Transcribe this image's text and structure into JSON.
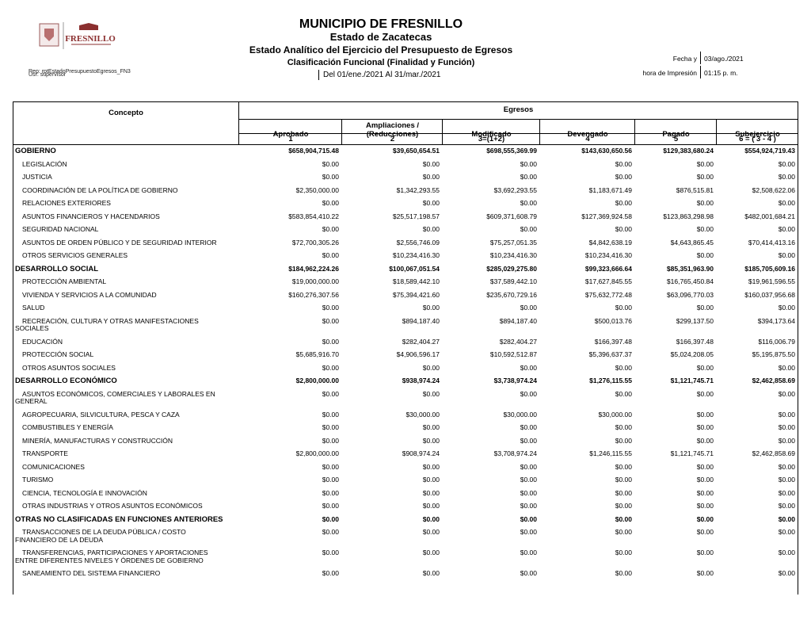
{
  "header": {
    "logo_text": "FRESNILLO",
    "title": "MUNICIPIO DE FRESNILLO",
    "subtitle": "Estado de Zacatecas",
    "report": "Estado Analítico del Ejercicio del Presupuesto de Egresos",
    "classification": "Clasificación Funcional (Finalidad y Función)",
    "period": "Del 01/ene./2021 Al 31/mar./2021",
    "rep": "Rep: rptEstadoPresupuestoEgresos_FN3",
    "user": "Usr: supervisor",
    "date_label": "Fecha y",
    "date": "03/ago./2021",
    "time_label": "hora de Impresión",
    "time": "01:15 p. m."
  },
  "table": {
    "concept_header": "Concepto",
    "group_header": "Egresos",
    "columns": [
      {
        "lines": [
          "Aprobado"
        ],
        "number": "1"
      },
      {
        "lines": [
          "Ampliaciones /",
          "(Reducciones)"
        ],
        "number": "2"
      },
      {
        "lines": [
          "Modificado"
        ],
        "number": "3=(1+2)"
      },
      {
        "lines": [
          "Devengado"
        ],
        "number": "4"
      },
      {
        "lines": [
          "Pagado"
        ],
        "number": "5"
      },
      {
        "lines": [
          "Subejercicio"
        ],
        "number": "6 = ( 3 - 4 )"
      }
    ],
    "sections": [
      {
        "name": "GOBIERNO",
        "totals": [
          "$658,904,715.48",
          "$39,650,654.51",
          "$698,555,369.99",
          "$143,630,650.56",
          "$129,383,680.24",
          "$554,924,719.43"
        ],
        "items": [
          {
            "concept": "LEGISLACIÓN",
            "values": [
              "$0.00",
              "$0.00",
              "$0.00",
              "$0.00",
              "$0.00",
              "$0.00"
            ]
          },
          {
            "concept": "JUSTICIA",
            "values": [
              "$0.00",
              "$0.00",
              "$0.00",
              "$0.00",
              "$0.00",
              "$0.00"
            ]
          },
          {
            "concept": "COORDINACIÓN DE LA POLÍTICA DE GOBIERNO",
            "values": [
              "$2,350,000.00",
              "$1,342,293.55",
              "$3,692,293.55",
              "$1,183,671.49",
              "$876,515.81",
              "$2,508,622.06"
            ]
          },
          {
            "concept": "RELACIONES EXTERIORES",
            "values": [
              "$0.00",
              "$0.00",
              "$0.00",
              "$0.00",
              "$0.00",
              "$0.00"
            ]
          },
          {
            "concept": "ASUNTOS FINANCIEROS Y HACENDARIOS",
            "values": [
              "$583,854,410.22",
              "$25,517,198.57",
              "$609,371,608.79",
              "$127,369,924.58",
              "$123,863,298.98",
              "$482,001,684.21"
            ]
          },
          {
            "concept": "SEGURIDAD NACIONAL",
            "values": [
              "$0.00",
              "$0.00",
              "$0.00",
              "$0.00",
              "$0.00",
              "$0.00"
            ]
          },
          {
            "concept": "ASUNTOS DE ORDEN PÚBLICO Y DE SEGURIDAD INTERIOR",
            "values": [
              "$72,700,305.26",
              "$2,556,746.09",
              "$75,257,051.35",
              "$4,842,638.19",
              "$4,643,865.45",
              "$70,414,413.16"
            ]
          },
          {
            "concept": "OTROS SERVICIOS GENERALES",
            "values": [
              "$0.00",
              "$10,234,416.30",
              "$10,234,416.30",
              "$10,234,416.30",
              "$0.00",
              "$0.00"
            ]
          }
        ]
      },
      {
        "name": "DESARROLLO SOCIAL",
        "totals": [
          "$184,962,224.26",
          "$100,067,051.54",
          "$285,029,275.80",
          "$99,323,666.64",
          "$85,351,963.90",
          "$185,705,609.16"
        ],
        "items": [
          {
            "concept": "PROTECCIÓN AMBIENTAL",
            "values": [
              "$19,000,000.00",
              "$18,589,442.10",
              "$37,589,442.10",
              "$17,627,845.55",
              "$16,765,450.84",
              "$19,961,596.55"
            ]
          },
          {
            "concept": "VIVIENDA Y SERVICIOS  A LA COMUNIDAD",
            "values": [
              "$160,276,307.56",
              "$75,394,421.60",
              "$235,670,729.16",
              "$75,632,772.48",
              "$63,096,770.03",
              "$160,037,956.68"
            ]
          },
          {
            "concept": "SALUD",
            "values": [
              "$0.00",
              "$0.00",
              "$0.00",
              "$0.00",
              "$0.00",
              "$0.00"
            ]
          },
          {
            "concept": "RECREACIÓN, CULTURA Y OTRAS MANIFESTACIONES SOCIALES",
            "values": [
              "$0.00",
              "$894,187.40",
              "$894,187.40",
              "$500,013.76",
              "$299,137.50",
              "$394,173.64"
            ]
          },
          {
            "concept": "EDUCACIÓN",
            "values": [
              "$0.00",
              "$282,404.27",
              "$282,404.27",
              "$166,397.48",
              "$166,397.48",
              "$116,006.79"
            ]
          },
          {
            "concept": "PROTECCIÓN SOCIAL",
            "values": [
              "$5,685,916.70",
              "$4,906,596.17",
              "$10,592,512.87",
              "$5,396,637.37",
              "$5,024,208.05",
              "$5,195,875.50"
            ]
          },
          {
            "concept": "OTROS ASUNTOS SOCIALES",
            "values": [
              "$0.00",
              "$0.00",
              "$0.00",
              "$0.00",
              "$0.00",
              "$0.00"
            ]
          }
        ]
      },
      {
        "name": "DESARROLLO ECONÓMICO",
        "totals": [
          "$2,800,000.00",
          "$938,974.24",
          "$3,738,974.24",
          "$1,276,115.55",
          "$1,121,745.71",
          "$2,462,858.69"
        ],
        "items": [
          {
            "concept": "ASUNTOS ECONÓMICOS, COMERCIALES Y LABORALES EN GENERAL",
            "values": [
              "$0.00",
              "$0.00",
              "$0.00",
              "$0.00",
              "$0.00",
              "$0.00"
            ]
          },
          {
            "concept": "AGROPECUARIA, SILVICULTURA, PESCA Y CAZA",
            "values": [
              "$0.00",
              "$30,000.00",
              "$30,000.00",
              "$30,000.00",
              "$0.00",
              "$0.00"
            ]
          },
          {
            "concept": "COMBUSTIBLES Y ENERGÍA",
            "values": [
              "$0.00",
              "$0.00",
              "$0.00",
              "$0.00",
              "$0.00",
              "$0.00"
            ]
          },
          {
            "concept": "MINERÍA, MANUFACTURAS Y CONSTRUCCIÓN",
            "values": [
              "$0.00",
              "$0.00",
              "$0.00",
              "$0.00",
              "$0.00",
              "$0.00"
            ]
          },
          {
            "concept": "TRANSPORTE",
            "values": [
              "$2,800,000.00",
              "$908,974.24",
              "$3,708,974.24",
              "$1,246,115.55",
              "$1,121,745.71",
              "$2,462,858.69"
            ]
          },
          {
            "concept": "COMUNICACIONES",
            "values": [
              "$0.00",
              "$0.00",
              "$0.00",
              "$0.00",
              "$0.00",
              "$0.00"
            ]
          },
          {
            "concept": "TURISMO",
            "values": [
              "$0.00",
              "$0.00",
              "$0.00",
              "$0.00",
              "$0.00",
              "$0.00"
            ]
          },
          {
            "concept": "CIENCIA, TECNOLOGÍA E INNOVACIÓN",
            "values": [
              "$0.00",
              "$0.00",
              "$0.00",
              "$0.00",
              "$0.00",
              "$0.00"
            ]
          },
          {
            "concept": "OTRAS INDUSTRIAS Y OTROS ASUNTOS ECONÓMICOS",
            "values": [
              "$0.00",
              "$0.00",
              "$0.00",
              "$0.00",
              "$0.00",
              "$0.00"
            ]
          }
        ]
      },
      {
        "name": "OTRAS NO CLASIFICADAS EN FUNCIONES ANTERIORES",
        "totals": [
          "$0.00",
          "$0.00",
          "$0.00",
          "$0.00",
          "$0.00",
          "$0.00"
        ],
        "items": [
          {
            "concept": "TRANSACCIONES DE LA DEUDA PÚBLICA / COSTO FINANCIERO DE LA DEUDA",
            "values": [
              "$0.00",
              "$0.00",
              "$0.00",
              "$0.00",
              "$0.00",
              "$0.00"
            ]
          },
          {
            "concept": "TRANSFERENCIAS, PARTICIPACIONES Y APORTACIONES ENTRE DIFERENTES NIVELES Y ÓRDENES DE GOBIERNO",
            "values": [
              "$0.00",
              "$0.00",
              "$0.00",
              "$0.00",
              "$0.00",
              "$0.00"
            ]
          },
          {
            "concept": "SANEAMIENTO DEL SISTEMA FINANCIERO",
            "values": [
              "$0.00",
              "$0.00",
              "$0.00",
              "$0.00",
              "$0.00",
              "$0.00"
            ]
          }
        ]
      }
    ]
  }
}
